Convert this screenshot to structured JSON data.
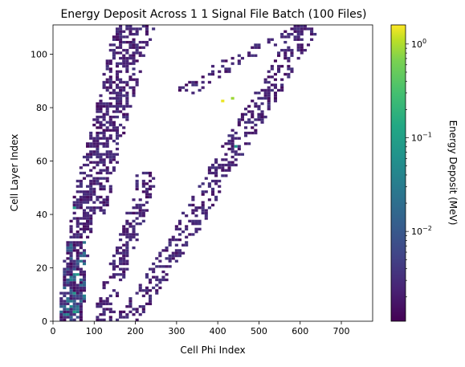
{
  "chart_data": {
    "type": "heatmap",
    "title": "Energy Deposit Across 1 1 Signal File Batch (100 Files)",
    "xlabel": "Cell Phi Index",
    "ylabel": "Cell Layer Index",
    "colorbar_label": "Energy Deposit (MeV)",
    "colormap": "viridis",
    "color_scale": "log",
    "xlim": [
      0,
      776
    ],
    "ylim": [
      0,
      111
    ],
    "clim": [
      0.0011,
      1.6
    ],
    "x_ticks": [
      0,
      100,
      200,
      300,
      400,
      500,
      600,
      700
    ],
    "y_ticks": [
      0,
      20,
      40,
      60,
      80,
      100
    ],
    "colorbar_ticks": [
      {
        "value": 0.01,
        "label": "10",
        "exp": "−2"
      },
      {
        "value": 0.1,
        "label": "10",
        "exp": "−1"
      },
      {
        "value": 1,
        "label": "10",
        "exp": "0"
      }
    ],
    "grid": false,
    "bin_width": 8,
    "bin_height": 1,
    "bands": [
      {
        "name": "steep-left-band",
        "points": [
          [
            40,
            0
          ],
          [
            55,
            20
          ],
          [
            72,
            40
          ],
          [
            92,
            55
          ],
          [
            120,
            70
          ],
          [
            150,
            90
          ],
          [
            180,
            111
          ]
        ],
        "spread": 25,
        "density": 0.55
      },
      {
        "name": "steep-right-band",
        "points": [
          [
            110,
            40
          ],
          [
            140,
            60
          ],
          [
            170,
            80
          ],
          [
            200,
            95
          ],
          [
            230,
            111
          ]
        ],
        "spread": 18,
        "density": 0.4
      },
      {
        "name": "mid-band-lower",
        "points": [
          [
            120,
            0
          ],
          [
            150,
            15
          ],
          [
            185,
            30
          ],
          [
            215,
            45
          ],
          [
            230,
            55
          ]
        ],
        "spread": 22,
        "density": 0.45
      },
      {
        "name": "shallow-band",
        "points": [
          [
            175,
            0
          ],
          [
            250,
            15
          ],
          [
            330,
            35
          ],
          [
            400,
            55
          ],
          [
            480,
            75
          ],
          [
            560,
            95
          ],
          [
            620,
            111
          ]
        ],
        "spread": 28,
        "density": 0.42
      },
      {
        "name": "top-right-band",
        "points": [
          [
            320,
            85
          ],
          [
            420,
            95
          ],
          [
            520,
            103
          ],
          [
            620,
            110
          ],
          [
            776,
            111
          ]
        ],
        "spread": 30,
        "density": 0.3
      }
    ],
    "hotspots": [
      {
        "x": 412,
        "y": 82,
        "energy": 1.3
      },
      {
        "x": 438,
        "y": 83,
        "energy": 0.55
      },
      {
        "x": 60,
        "y": 17,
        "energy": 0.06
      },
      {
        "x": 50,
        "y": 10,
        "energy": 0.05
      },
      {
        "x": 45,
        "y": 5,
        "energy": 0.04
      },
      {
        "x": 55,
        "y": 3,
        "energy": 0.07
      },
      {
        "x": 38,
        "y": 2,
        "energy": 0.03
      },
      {
        "x": 70,
        "y": 22,
        "energy": 0.02
      },
      {
        "x": 48,
        "y": 42,
        "energy": 0.06
      },
      {
        "x": 440,
        "y": 65,
        "energy": 0.05
      }
    ]
  }
}
